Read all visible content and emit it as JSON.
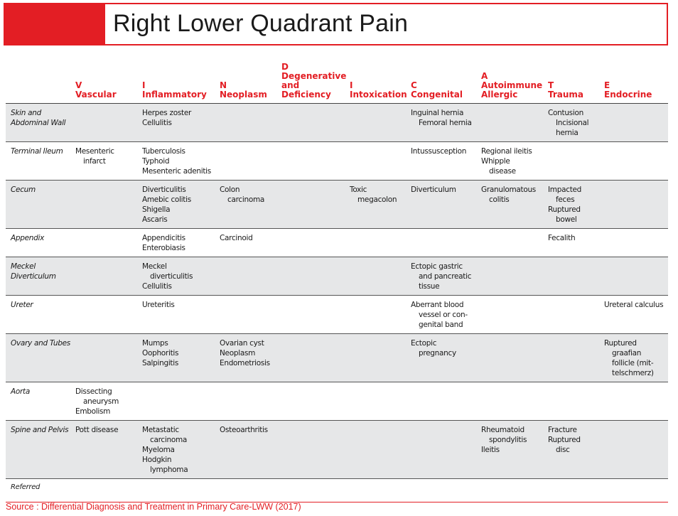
{
  "title": "Right Lower Quadrant Pain",
  "colors": {
    "accent": "#e31e24",
    "shade": "#e6e7e8"
  },
  "columns": [
    {
      "letter": "V",
      "lines": [
        "Vascular"
      ]
    },
    {
      "letter": "I",
      "lines": [
        "Inflammatory"
      ]
    },
    {
      "letter": "N",
      "lines": [
        "Neoplasm"
      ]
    },
    {
      "letter": "D",
      "lines": [
        "Degenerative",
        "and",
        "Deficiency"
      ]
    },
    {
      "letter": "I",
      "lines": [
        "Intoxication"
      ]
    },
    {
      "letter": "C",
      "lines": [
        "Congenital"
      ]
    },
    {
      "letter": "A",
      "lines": [
        "Autoimmune",
        "Allergic"
      ]
    },
    {
      "letter": "T",
      "lines": [
        "Trauma"
      ]
    },
    {
      "letter": "E",
      "lines": [
        "Endocrine"
      ]
    }
  ],
  "rows": [
    {
      "label": [
        "Skin and",
        "Abdominal Wall"
      ],
      "shaded": true,
      "cells": [
        [],
        [
          "Herpes zoster",
          "Cellulitis"
        ],
        [],
        [],
        [],
        [
          "Inguinal hernia",
          "  Femoral hernia"
        ],
        [],
        [
          "Contusion",
          "  Incisional",
          "  hernia"
        ],
        []
      ]
    },
    {
      "label": [
        "Terminal Ileum"
      ],
      "shaded": false,
      "cells": [
        [
          "Mesenteric",
          "  infarct"
        ],
        [
          "Tuberculosis",
          "Typhoid",
          "Mesenteric adenitis"
        ],
        [],
        [],
        [],
        [
          "Intussusception"
        ],
        [
          "Regional ileitis",
          "Whipple",
          "  disease"
        ],
        [],
        []
      ]
    },
    {
      "label": [
        "Cecum"
      ],
      "shaded": true,
      "cells": [
        [],
        [
          "Diverticulitis",
          "Amebic colitis",
          "Shigella",
          "Ascaris"
        ],
        [
          "Colon",
          "  carcinoma"
        ],
        [],
        [
          "Toxic",
          "  megacolon"
        ],
        [
          "Diverticulum"
        ],
        [
          "Granulomatous",
          "  colitis"
        ],
        [
          "Impacted",
          "  feces",
          "Ruptured",
          "  bowel"
        ],
        []
      ]
    },
    {
      "label": [
        "Appendix"
      ],
      "shaded": false,
      "cells": [
        [],
        [
          "Appendicitis",
          "Enterobiasis"
        ],
        [
          "Carcinoid"
        ],
        [],
        [],
        [],
        [],
        [
          "Fecalith"
        ],
        []
      ]
    },
    {
      "label": [
        "Meckel",
        "Diverticulum"
      ],
      "shaded": true,
      "cells": [
        [],
        [
          "Meckel",
          "  diverticulitis",
          "Cellulitis"
        ],
        [],
        [],
        [],
        [
          "Ectopic gastric",
          "  and pancreatic",
          "  tissue"
        ],
        [],
        [],
        []
      ]
    },
    {
      "label": [
        "Ureter"
      ],
      "shaded": false,
      "cells": [
        [],
        [
          "Ureteritis"
        ],
        [],
        [],
        [],
        [
          "Aberrant blood",
          "  vessel or con-",
          "  genital band"
        ],
        [],
        [],
        [
          "Ureteral calculus"
        ]
      ]
    },
    {
      "label": [
        "Ovary and Tubes"
      ],
      "shaded": true,
      "cells": [
        [],
        [
          "Mumps",
          "Oophoritis",
          "Salpingitis"
        ],
        [
          "Ovarian cyst",
          "Neoplasm",
          "Endometriosis"
        ],
        [],
        [],
        [
          "Ectopic",
          "  pregnancy"
        ],
        [],
        [],
        [
          "Ruptured",
          "  graafian",
          "  follicle (mit-",
          "  telschmerz)"
        ]
      ]
    },
    {
      "label": [
        "Aorta"
      ],
      "shaded": false,
      "cells": [
        [
          "Dissecting",
          "  aneurysm",
          "Embolism"
        ],
        [],
        [],
        [],
        [],
        [],
        [],
        [],
        []
      ]
    },
    {
      "label": [
        "Spine and Pelvis"
      ],
      "shaded": true,
      "cells": [
        [
          "Pott disease"
        ],
        [
          "Metastatic",
          "  carcinoma",
          "Myeloma",
          "Hodgkin",
          "  lymphoma"
        ],
        [
          "Osteoarthritis"
        ],
        [],
        [],
        [],
        [
          "Rheumatoid",
          "  spondylitis",
          "Ileitis"
        ],
        [
          "Fracture",
          "Ruptured",
          "  disc"
        ],
        []
      ]
    }
  ],
  "footer_row_label": "Referred",
  "source": "Source : Differential Diagnosis and Treatment in Primary Care-LWW (2017)"
}
